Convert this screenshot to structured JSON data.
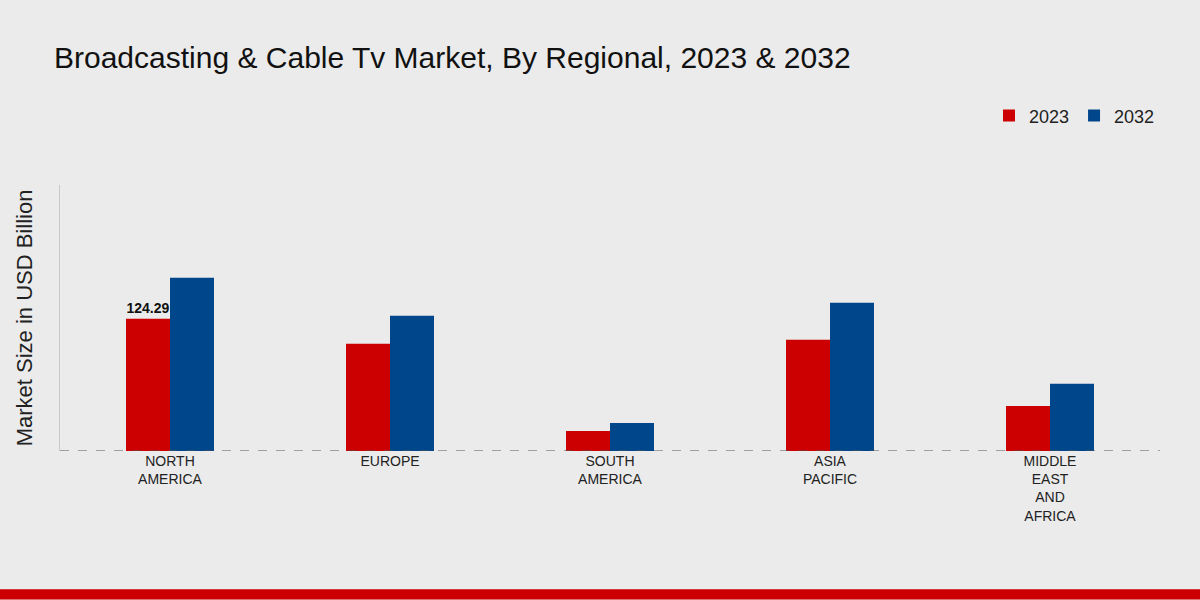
{
  "chart_data": {
    "type": "bar",
    "title": "Broadcasting & Cable Tv Market, By Regional, 2023 & 2032",
    "y_label": "Market Size in USD Billion",
    "categories": [
      "NORTH\nAMERICA",
      "EUROPE",
      "SOUTH\nAMERICA",
      "ASIA\nPACIFIC",
      "MIDDLE\nEAST\nAND\nAFRICA"
    ],
    "series": [
      {
        "name": "2023",
        "color": "#cc0000",
        "values": [
          124.29,
          100.8,
          18.8,
          104.5,
          42.4
        ],
        "value_labels": [
          "124.29",
          null,
          null,
          null,
          null
        ]
      },
      {
        "name": "2032",
        "color": "#00468b",
        "values": [
          162.9,
          127.1,
          26.4,
          139.4,
          63.1
        ]
      }
    ],
    "ylim": [
      0,
      250
    ],
    "tick_labels": "x",
    "grid": false,
    "legend": "top-right"
  }
}
